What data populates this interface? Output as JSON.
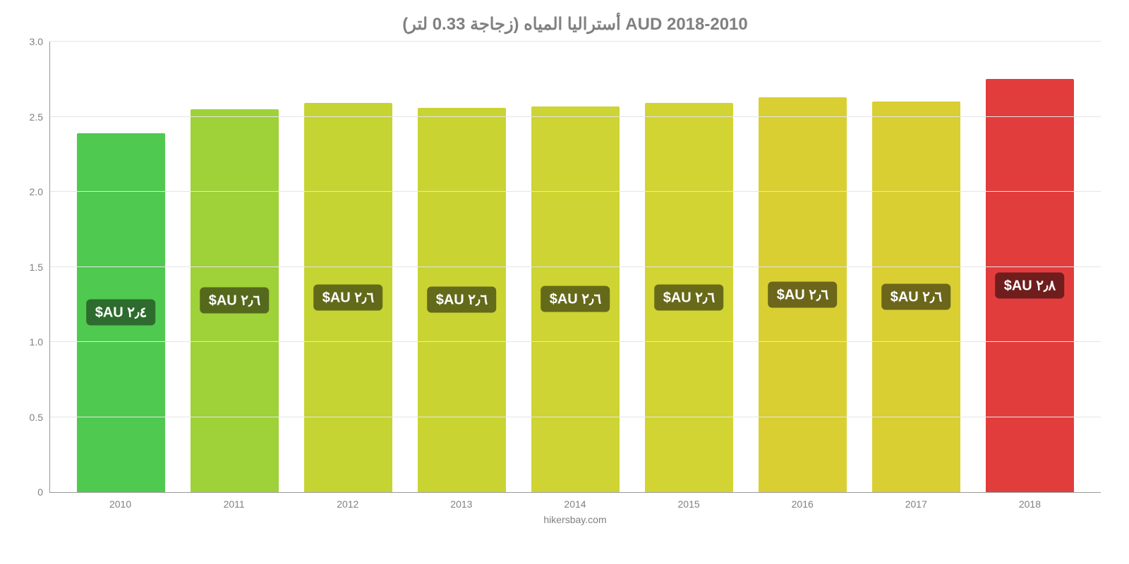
{
  "chart": {
    "type": "bar",
    "title": "أستراليا المياه (زجاجة 0.33 لتر) AUD 2018-2010",
    "title_color": "#808080",
    "title_fontsize": 24,
    "background_color": "#ffffff",
    "grid_color": "#e5e5e5",
    "axis_color": "#999999",
    "tick_label_color": "#808080",
    "tick_label_fontsize": 14,
    "yaxis": {
      "min": 0,
      "max": 3.0,
      "ticks": [
        0,
        0.5,
        1.0,
        1.5,
        2.0,
        2.5,
        3.0
      ],
      "tick_labels": [
        "0",
        "0.5",
        "1.0",
        "1.5",
        "2.0",
        "2.5",
        "3.0"
      ]
    },
    "xaxis": {
      "labels": [
        "2010",
        "2011",
        "2012",
        "2013",
        "2014",
        "2015",
        "2016",
        "2017",
        "2018"
      ]
    },
    "bars": [
      {
        "year": "2010",
        "value": 2.39,
        "label": "٢٫٤ AU$",
        "color": "#4fc94f",
        "badge_bg": "#2e6b2e"
      },
      {
        "year": "2011",
        "value": 2.55,
        "label": "٢٫٦ AU$",
        "color": "#9fd138",
        "badge_bg": "#55691d"
      },
      {
        "year": "2012",
        "value": 2.59,
        "label": "٢٫٦ AU$",
        "color": "#c5d433",
        "badge_bg": "#626a1a"
      },
      {
        "year": "2013",
        "value": 2.56,
        "label": "٢٫٦ AU$",
        "color": "#c9d433",
        "badge_bg": "#636a1a"
      },
      {
        "year": "2014",
        "value": 2.57,
        "label": "٢٫٦ AU$",
        "color": "#cdd433",
        "badge_bg": "#656a1a"
      },
      {
        "year": "2015",
        "value": 2.59,
        "label": "٢٫٦ AU$",
        "color": "#d2d433",
        "badge_bg": "#686a1a"
      },
      {
        "year": "2016",
        "value": 2.63,
        "label": "٢٫٦ AU$",
        "color": "#d9cf33",
        "badge_bg": "#6b661a"
      },
      {
        "year": "2017",
        "value": 2.6,
        "label": "٢٫٦ AU$",
        "color": "#d9cf33",
        "badge_bg": "#6b661a"
      },
      {
        "year": "2018",
        "value": 2.75,
        "label": "٢٫٨ AU$",
        "color": "#e23d3d",
        "badge_bg": "#6f1d1d"
      }
    ],
    "bar_label_fontsize": 20,
    "bar_label_color": "#ffffff",
    "footer": "hikersbay.com",
    "footer_color": "#808080"
  }
}
